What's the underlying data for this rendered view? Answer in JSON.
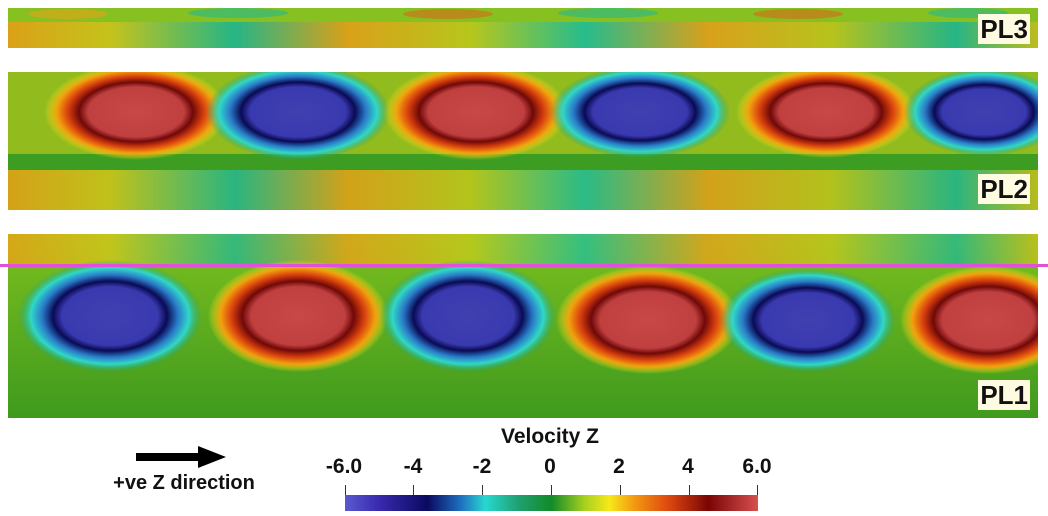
{
  "panels": {
    "pl3": {
      "label": "PL3"
    },
    "pl2": {
      "label": "PL2"
    },
    "pl1": {
      "label": "PL1"
    }
  },
  "direction": {
    "label": "+ve Z direction"
  },
  "colorbar": {
    "title": "Velocity Z",
    "ticks": [
      "-6.0",
      "-4",
      "-2",
      "0",
      "2",
      "4",
      "6.0"
    ],
    "range": [
      -6.0,
      6.0
    ],
    "colors": {
      "min": "#5a5ad0",
      "zero": "#138a2a",
      "max": "#d85050"
    }
  },
  "marker_line": {
    "color": "#e050d8"
  }
}
